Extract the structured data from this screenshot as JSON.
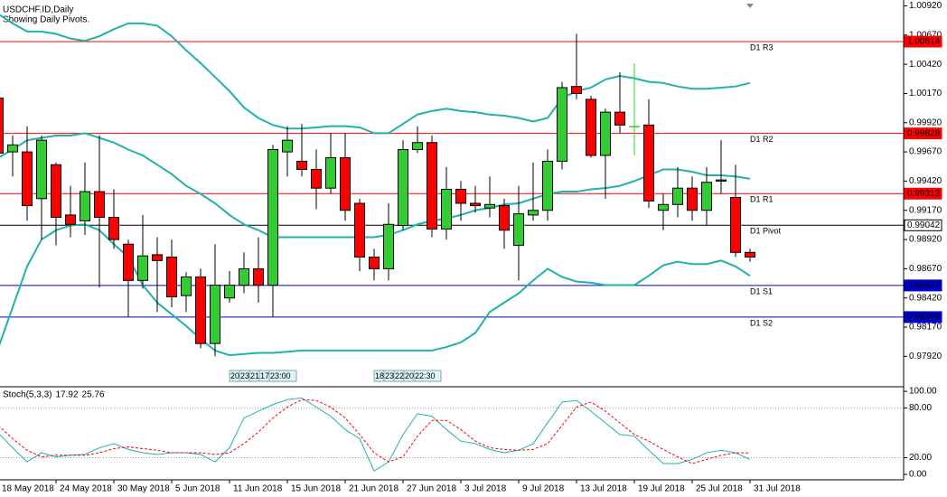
{
  "chart_data": [
    {
      "type": "candlestick",
      "title": "USDCHF.ID,Daily",
      "subtitle": "Showing Daily Pivots.",
      "categories": [
        "18 May 2018",
        null,
        null,
        null,
        "24 May 2018",
        null,
        null,
        null,
        "30 May 2018",
        null,
        null,
        null,
        "5 Jun 2018",
        null,
        null,
        null,
        "11 Jun 2018",
        null,
        null,
        null,
        "15 Jun 2018",
        null,
        null,
        null,
        "21 Jun 2018",
        null,
        null,
        null,
        "27 Jun 2018",
        null,
        null,
        null,
        "3 Jul 2018",
        null,
        null,
        null,
        "9 Jul 2018",
        null,
        null,
        null,
        "13 Jul 2018",
        null,
        null,
        null,
        "19 Jul 2018",
        null,
        null,
        null,
        "25 Jul 2018",
        null,
        null,
        null,
        "31 Jul 2018"
      ],
      "open": [
        1.0013,
        0.9967,
        0.9967,
        0.9927,
        0.9956,
        0.9913,
        0.9908,
        0.9933,
        0.9911,
        0.9888,
        0.9857,
        0.9879,
        0.9877,
        0.9844,
        0.986,
        0.9803,
        0.9842,
        0.9853,
        0.9867,
        0.9853,
        0.9967,
        0.9959,
        0.9952,
        0.9936,
        0.9962,
        0.9923,
        0.9877,
        0.9867,
        0.9904,
        0.9969,
        0.9975,
        0.9901,
        0.9935,
        0.9923,
        0.9919,
        0.9921,
        0.9887,
        0.9913,
        0.9917,
        0.9959,
        1.0023,
        1.0012,
        0.9964,
        1.0001,
        0.9989,
        0.999,
        0.9917,
        0.9922,
        0.9936,
        0.9917,
        0.9942,
        0.9928,
        0.9881
      ],
      "high": [
        1.0019,
        0.9981,
        0.9989,
        0.9981,
        0.9958,
        0.9938,
        0.9958,
        0.9981,
        0.9935,
        0.9892,
        0.9913,
        0.9894,
        0.9892,
        0.9864,
        0.9867,
        0.9888,
        0.9865,
        0.9881,
        0.9894,
        0.9973,
        0.9989,
        0.9991,
        0.9969,
        0.9983,
        0.9983,
        0.9927,
        0.9884,
        0.9923,
        0.9977,
        0.9989,
        0.9981,
        0.9954,
        0.9942,
        0.9938,
        0.9946,
        0.9927,
        0.9938,
        0.9958,
        0.9969,
        1.0027,
        1.0068,
        1.0015,
        1.0004,
        1.0035,
        1.0043,
        1.0012,
        0.9931,
        0.9954,
        0.9946,
        0.9954,
        0.9977,
        0.9956,
        0.9884
      ],
      "low": [
        0.9962,
        0.9946,
        0.9908,
        0.9892,
        0.9887,
        0.9894,
        0.9896,
        0.9851,
        0.9884,
        0.9826,
        0.985,
        0.983,
        0.9834,
        0.983,
        0.9799,
        0.9792,
        0.9838,
        0.9846,
        0.9838,
        0.9826,
        0.9946,
        0.9946,
        0.9918,
        0.9931,
        0.9908,
        0.9865,
        0.9857,
        0.9857,
        0.99,
        0.9966,
        0.9894,
        0.9892,
        0.9908,
        0.9915,
        0.9911,
        0.9884,
        0.9857,
        0.9908,
        0.9908,
        0.9952,
        1.0012,
        0.9962,
        0.9927,
        0.9983,
        0.9964,
        0.9919,
        0.99,
        0.9911,
        0.9908,
        0.9904,
        0.9931,
        0.9877,
        0.9873
      ],
      "close": [
        0.9966,
        0.9973,
        0.9921,
        0.9977,
        0.9911,
        0.9905,
        0.9933,
        0.9911,
        0.9892,
        0.9857,
        0.9878,
        0.9874,
        0.9843,
        0.986,
        0.9803,
        0.9853,
        0.9853,
        0.9867,
        0.9853,
        0.9969,
        0.9977,
        0.9952,
        0.9936,
        0.9962,
        0.9917,
        0.9877,
        0.9867,
        0.9905,
        0.9969,
        0.9975,
        0.9901,
        0.9935,
        0.9923,
        0.9921,
        0.9922,
        0.99,
        0.9914,
        0.9917,
        0.9959,
        1.0022,
        1.0017,
        0.9964,
        1.0001,
        0.999,
        0.9989,
        0.9925,
        0.9922,
        0.9936,
        0.9917,
        0.9941,
        0.9943,
        0.9881,
        0.9877
      ],
      "up_color": "#32cd32",
      "down_color": "#ff0000",
      "bands": {
        "color": "#20b2aa",
        "upper": [
          1.0085,
          1.0077,
          1.007,
          1.007,
          1.0068,
          1.0064,
          1.0062,
          1.0066,
          1.0072,
          1.0077,
          1.0077,
          1.0075,
          1.0066,
          1.0054,
          1.0043,
          1.0031,
          1.0019,
          1.0005,
          0.9996,
          0.999,
          0.9987,
          0.9987,
          0.9988,
          0.9989,
          0.9989,
          0.9988,
          0.9983,
          0.9983,
          0.9991,
          0.9999,
          1.0002,
          1.0004,
          1.0002,
          1.0001,
          0.9999,
          0.9998,
          0.9996,
          0.9993,
          0.9996,
          1.0013,
          1.0019,
          1.0022,
          1.0029,
          1.0032,
          1.003,
          1.0027,
          1.0026,
          1.0023,
          1.0021,
          1.0021,
          1.0022,
          1.0023,
          1.0026
        ],
        "middle": [
          0.9962,
          0.9969,
          0.9977,
          0.9979,
          0.9981,
          0.9981,
          0.9983,
          0.9979,
          0.9975,
          0.9969,
          0.9964,
          0.9956,
          0.9948,
          0.9938,
          0.9931,
          0.9923,
          0.9913,
          0.9905,
          0.99,
          0.9894,
          0.9894,
          0.9894,
          0.9894,
          0.9894,
          0.9894,
          0.9894,
          0.9894,
          0.9896,
          0.99,
          0.9905,
          0.9908,
          0.991,
          0.9913,
          0.9917,
          0.9919,
          0.9922,
          0.9923,
          0.9927,
          0.9931,
          0.9933,
          0.9933,
          0.9935,
          0.9936,
          0.9938,
          0.9942,
          0.9947,
          0.9952,
          0.9952,
          0.995,
          0.9947,
          0.9947,
          0.9946,
          0.9944
        ],
        "lower": [
          0.9799,
          0.9834,
          0.9869,
          0.9892,
          0.99,
          0.9904,
          0.9905,
          0.99,
          0.9888,
          0.9877,
          0.9853,
          0.9838,
          0.9828,
          0.9818,
          0.9807,
          0.9797,
          0.9793,
          0.9794,
          0.9795,
          0.9795,
          0.9796,
          0.9797,
          0.9797,
          0.9797,
          0.9797,
          0.9797,
          0.9797,
          0.9797,
          0.9797,
          0.9797,
          0.9797,
          0.98,
          0.9804,
          0.9812,
          0.983,
          0.9838,
          0.9846,
          0.9857,
          0.9867,
          0.986,
          0.9856,
          0.9855,
          0.9853,
          0.9853,
          0.9853,
          0.9861,
          0.987,
          0.9873,
          0.9871,
          0.9871,
          0.9874,
          0.9869,
          0.9861
        ]
      },
      "pivots": [
        {
          "label": "D1 R3",
          "value": 1.00614,
          "color": "#ff0000"
        },
        {
          "label": "D1 R2",
          "value": 0.99828,
          "color": "#ff0000"
        },
        {
          "label": "D1 R1",
          "value": 0.99313,
          "color": "#ff0000"
        },
        {
          "label": "D1 Pivot",
          "value": 0.99042,
          "color": "#000000"
        },
        {
          "label": "D1 S1",
          "value": 0.98527,
          "color": "#0000cd"
        },
        {
          "label": "D1 S2",
          "value": 0.98256,
          "color": "#0000cd"
        }
      ],
      "time_labels": [
        [
          "20:",
          "23:",
          "21:",
          "17:",
          "23:00"
        ],
        [
          "18:",
          "23:",
          "22:",
          "20:",
          "22:30"
        ]
      ],
      "ylim": [
        0.9766,
        1.0097
      ],
      "yticks": [
        {
          "value": 1.0092,
          "label": "1.00920"
        },
        {
          "value": 1.0067,
          "label": "1.00670"
        },
        {
          "value": 1.0042,
          "label": "1.00420"
        },
        {
          "value": 1.0017,
          "label": "1.00170"
        },
        {
          "value": 0.9992,
          "label": "0.99920"
        },
        {
          "value": 0.9967,
          "label": "0.99670"
        },
        {
          "value": 0.9942,
          "label": "0.99420"
        },
        {
          "value": 0.9917,
          "label": "0.99170"
        },
        {
          "value": 0.9892,
          "label": "0.98920"
        },
        {
          "value": 0.9867,
          "label": "0.98670"
        },
        {
          "value": 0.9842,
          "label": "0.98420"
        },
        {
          "value": 0.9817,
          "label": "0.98170"
        },
        {
          "value": 0.9792,
          "label": "0.97920"
        }
      ]
    },
    {
      "type": "line",
      "name": "Stoch(5,3,3)",
      "series": [
        {
          "color": "#20b2aa",
          "dash": false,
          "values": [
            50,
            32,
            15,
            26,
            21,
            23,
            24,
            32,
            37,
            30,
            26,
            24,
            26,
            26,
            24,
            15,
            32,
            68,
            76,
            84,
            90,
            92,
            81,
            70,
            54,
            43,
            4,
            15,
            48,
            73,
            70,
            54,
            40,
            37,
            30,
            26,
            29,
            37,
            62,
            87,
            89,
            76,
            62,
            48,
            46,
            29,
            13,
            13,
            18,
            26,
            29,
            26,
            17.92
          ]
        },
        {
          "color": "#ff0000",
          "dash": true,
          "values": [
            59,
            43,
            29,
            21,
            23,
            23,
            23,
            26,
            31,
            33,
            31,
            29,
            26,
            26,
            26,
            24,
            26,
            37,
            51,
            68,
            81,
            90,
            89,
            81,
            68,
            48,
            26,
            15,
            21,
            46,
            65,
            65,
            54,
            40,
            32,
            30,
            29,
            30,
            37,
            59,
            81,
            87,
            76,
            62,
            48,
            40,
            30,
            21,
            13,
            18,
            23,
            26,
            25.76
          ]
        }
      ],
      "levels": [
        80,
        20
      ],
      "ylim": [
        -6.6,
        105.5
      ],
      "yticks": [
        {
          "value": 100,
          "label": "100.00"
        },
        {
          "value": 80,
          "label": "80.00"
        },
        {
          "value": 20,
          "label": "20.00"
        },
        {
          "value": 0,
          "label": "0.00"
        }
      ]
    }
  ]
}
